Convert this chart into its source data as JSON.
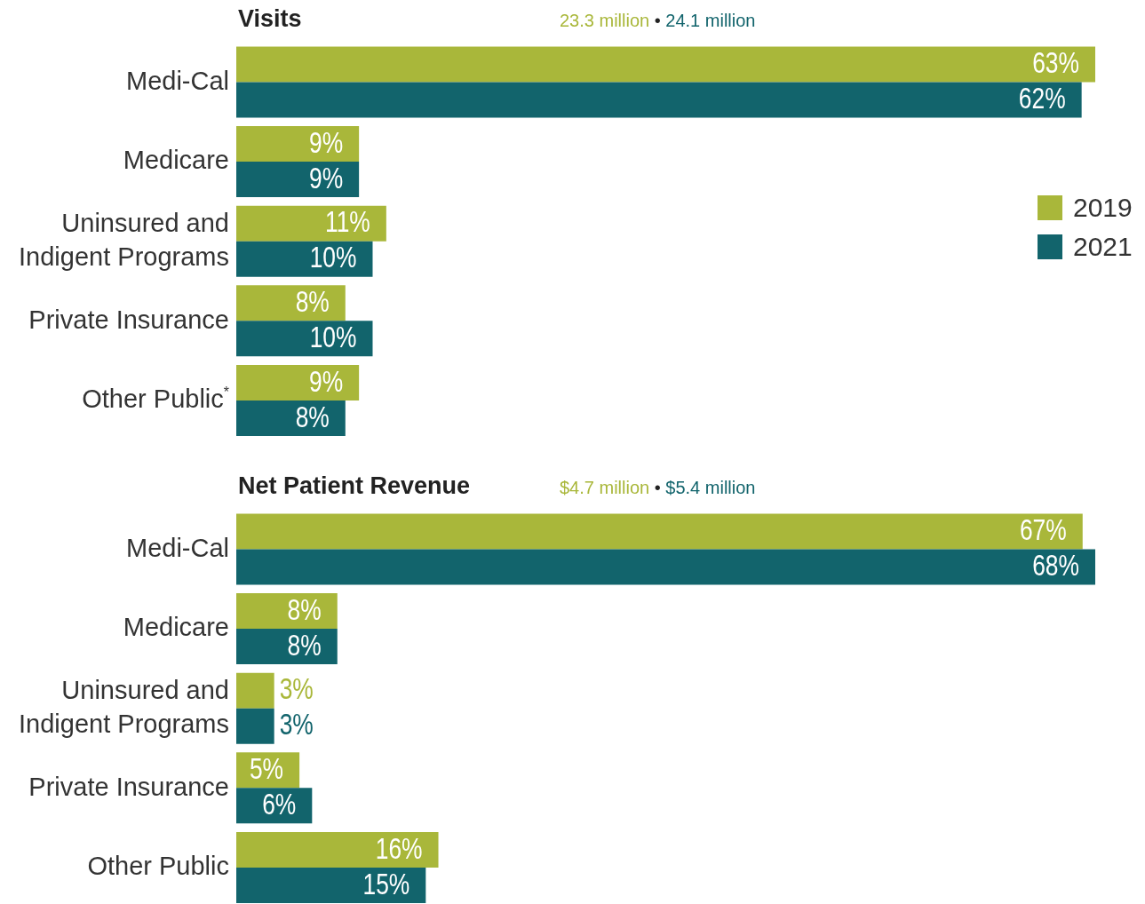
{
  "chart_data": [
    {
      "type": "bar",
      "orientation": "horizontal",
      "title": "Visits",
      "subtitle": "23.3 million • 24.1 million",
      "categories": [
        "Medi-Cal",
        "Medicare",
        "Uninsured and Indigent Programs",
        "Private Insurance",
        "Other Public$^{*}$"
      ],
      "tick_labels": "y",
      "grid": false,
      "legend": "right",
      "series": [
        {
          "name": "2019",
          "color": "#a9b73a",
          "values": [
            63,
            9,
            11,
            8,
            9
          ],
          "value_labels": [
            "63%",
            "9%",
            "11%",
            "8%",
            "9%"
          ]
        },
        {
          "name": "2021",
          "color": "#12646c",
          "values": [
            62,
            9,
            10,
            10,
            8
          ],
          "value_labels": [
            "62%",
            "9%",
            "10%",
            "10%",
            "8%"
          ]
        }
      ]
    },
    {
      "type": "bar",
      "orientation": "horizontal",
      "title": "Net Patient Revenue",
      "subtitle": "$4.7 million • $5.4 million",
      "categories": [
        "Medi-Cal",
        "Medicare",
        "Uninsured and Indigent Programs",
        "Private Insurance",
        "Other Public"
      ],
      "tick_labels": "y",
      "grid": false,
      "series": [
        {
          "color": "#a9b73a",
          "values": [
            67,
            8,
            3,
            5,
            16
          ],
          "value_labels": [
            "67%",
            "8%",
            "3%",
            "5%",
            "16%"
          ]
        },
        {
          "color": "#12646c",
          "values": [
            68,
            8,
            3,
            6,
            15
          ],
          "value_labels": [
            "68%",
            "8%",
            "3%",
            "6%",
            "15%"
          ]
        }
      ]
    }
  ]
}
